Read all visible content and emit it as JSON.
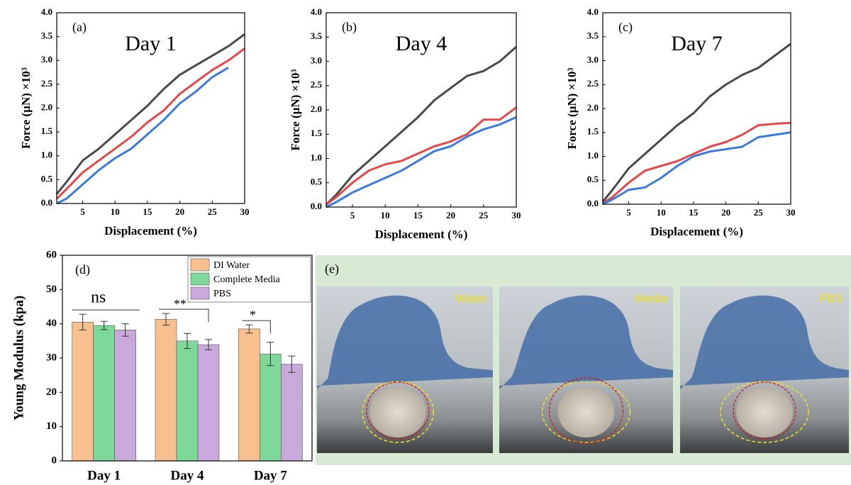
{
  "chart_data": [
    {
      "type": "line",
      "title": "Day 1",
      "annotation": "(a)",
      "x_label": "Displacement (%)",
      "y_label": "Force (µN) ×10³",
      "x": [
        1,
        2.5,
        5,
        7.5,
        10,
        12.5,
        15,
        17.5,
        20,
        22.5,
        25,
        27.5,
        30
      ],
      "series": [
        {
          "color": "#4a4a4a",
          "values": [
            0.2,
            0.45,
            0.9,
            1.15,
            1.45,
            1.75,
            2.05,
            2.4,
            2.7,
            2.9,
            3.1,
            3.3,
            3.55
          ]
        },
        {
          "color": "#e8474a",
          "values": [
            0.1,
            0.3,
            0.65,
            0.9,
            1.15,
            1.4,
            1.7,
            1.95,
            2.3,
            2.55,
            2.8,
            3.0,
            3.25
          ]
        },
        {
          "color": "#3a7be0",
          "values": [
            0.0,
            0.1,
            0.4,
            0.7,
            0.95,
            1.15,
            1.45,
            1.75,
            2.1,
            2.35,
            2.65,
            2.85,
            null
          ]
        }
      ],
      "xlim": [
        1,
        30
      ],
      "xticks": [
        5,
        10,
        15,
        20,
        25,
        30
      ],
      "ylim": [
        0,
        4
      ],
      "yticks": [
        {
          "value": 0,
          "label": "0.0"
        },
        {
          "value": 0.5,
          "label": "0.5"
        },
        {
          "value": 1,
          "label": "1.0"
        },
        {
          "value": 1.5,
          "label": "1.5"
        },
        {
          "value": 2,
          "label": "2.0"
        },
        {
          "value": 2.5,
          "label": "2.5"
        },
        {
          "value": 3,
          "label": "3.0"
        },
        {
          "value": 3.5,
          "label": "3.5"
        },
        {
          "value": 4,
          "label": "4.0"
        }
      ]
    },
    {
      "type": "line",
      "title": "Day 4",
      "annotation": "(b)",
      "x_label": "Displacement (%)",
      "y_label": "Force (µN) ×10³",
      "x": [
        1,
        2.5,
        5,
        7.5,
        10,
        12.5,
        15,
        17.5,
        20,
        22.5,
        25,
        27.5,
        30
      ],
      "series": [
        {
          "color": "#4a4a4a",
          "values": [
            0.05,
            0.25,
            0.65,
            0.95,
            1.25,
            1.55,
            1.85,
            2.2,
            2.45,
            2.7,
            2.8,
            3.0,
            3.3
          ]
        },
        {
          "color": "#e8474a",
          "values": [
            0.05,
            0.2,
            0.5,
            0.75,
            0.88,
            0.95,
            1.1,
            1.25,
            1.35,
            1.5,
            1.8,
            1.8,
            2.05
          ]
        },
        {
          "color": "#3a7be0",
          "values": [
            0.0,
            0.1,
            0.3,
            0.45,
            0.6,
            0.75,
            0.95,
            1.15,
            1.25,
            1.45,
            1.6,
            1.7,
            1.85
          ]
        }
      ],
      "xlim": [
        1,
        30
      ],
      "xticks": [
        5,
        10,
        15,
        20,
        25,
        30
      ],
      "ylim": [
        0,
        4
      ],
      "yticks": [
        {
          "value": 0,
          "label": "0.0"
        },
        {
          "value": 0.5,
          "label": "0.5"
        },
        {
          "value": 1,
          "label": "1.0"
        },
        {
          "value": 1.5,
          "label": "1.5"
        },
        {
          "value": 2,
          "label": "2.0"
        },
        {
          "value": 2.5,
          "label": "2.5"
        },
        {
          "value": 3,
          "label": "3.0"
        },
        {
          "value": 3.5,
          "label": "3.5"
        },
        {
          "value": 4,
          "label": "4.0"
        }
      ]
    },
    {
      "type": "line",
      "title": "Day 7",
      "annotation": "(c)",
      "x_label": "Displacement (%)",
      "y_label": "Force (µN) ×10³",
      "x": [
        1,
        2.5,
        5,
        7.5,
        10,
        12.5,
        15,
        17.5,
        20,
        22.5,
        25,
        27.5,
        30
      ],
      "series": [
        {
          "color": "#4a4a4a",
          "values": [
            0.05,
            0.3,
            0.75,
            1.05,
            1.35,
            1.65,
            1.9,
            2.25,
            2.5,
            2.7,
            2.85,
            3.1,
            3.35
          ]
        },
        {
          "color": "#e8474a",
          "values": [
            0.02,
            0.15,
            0.45,
            0.7,
            0.8,
            0.9,
            1.05,
            1.2,
            1.3,
            1.45,
            1.65,
            1.68,
            1.7
          ]
        },
        {
          "color": "#3a7be0",
          "values": [
            0.0,
            0.1,
            0.3,
            0.35,
            0.55,
            0.8,
            1.0,
            1.1,
            1.15,
            1.2,
            1.4,
            1.45,
            1.5
          ]
        }
      ],
      "xlim": [
        1,
        30
      ],
      "xticks": [
        5,
        10,
        15,
        20,
        25,
        30
      ],
      "ylim": [
        0,
        4
      ],
      "yticks": [
        {
          "value": 0,
          "label": "0.0"
        },
        {
          "value": 0.5,
          "label": "0.5"
        },
        {
          "value": 1,
          "label": "1.0"
        },
        {
          "value": 1.5,
          "label": "1.5"
        },
        {
          "value": 2,
          "label": "2.0"
        },
        {
          "value": 2.5,
          "label": "2.5"
        },
        {
          "value": 3,
          "label": "3.0"
        },
        {
          "value": 3.5,
          "label": "3.5"
        },
        {
          "value": 4,
          "label": "4.0"
        }
      ]
    },
    {
      "type": "bar",
      "annotation": "(d)",
      "y_label": "Young Modulus (kpa)",
      "categories": [
        "Day 1",
        "Day 4",
        "Day 7"
      ],
      "series": [
        {
          "name": "DI Water",
          "color": "#f9c08f",
          "values": [
            40.5,
            41.3,
            38.5
          ],
          "errors": [
            2.3,
            1.7,
            1.2
          ]
        },
        {
          "name": "Complete Media",
          "color": "#7dd89a",
          "values": [
            39.5,
            35,
            31.2
          ],
          "errors": [
            1.2,
            2.2,
            3.4
          ]
        },
        {
          "name": "PBS",
          "color": "#c9a8dc",
          "values": [
            38.2,
            33.9,
            28.2
          ],
          "errors": [
            1.8,
            1.5,
            2.4
          ]
        }
      ],
      "significance": [
        "ns",
        "**",
        "*"
      ],
      "ylim": [
        0,
        60
      ],
      "yticks": [
        0,
        10,
        20,
        30,
        40,
        50,
        60
      ],
      "legend": "top-right"
    }
  ],
  "photo_panel": {
    "label": "(e)",
    "captions": [
      "Water",
      "Media",
      "PBS"
    ]
  }
}
